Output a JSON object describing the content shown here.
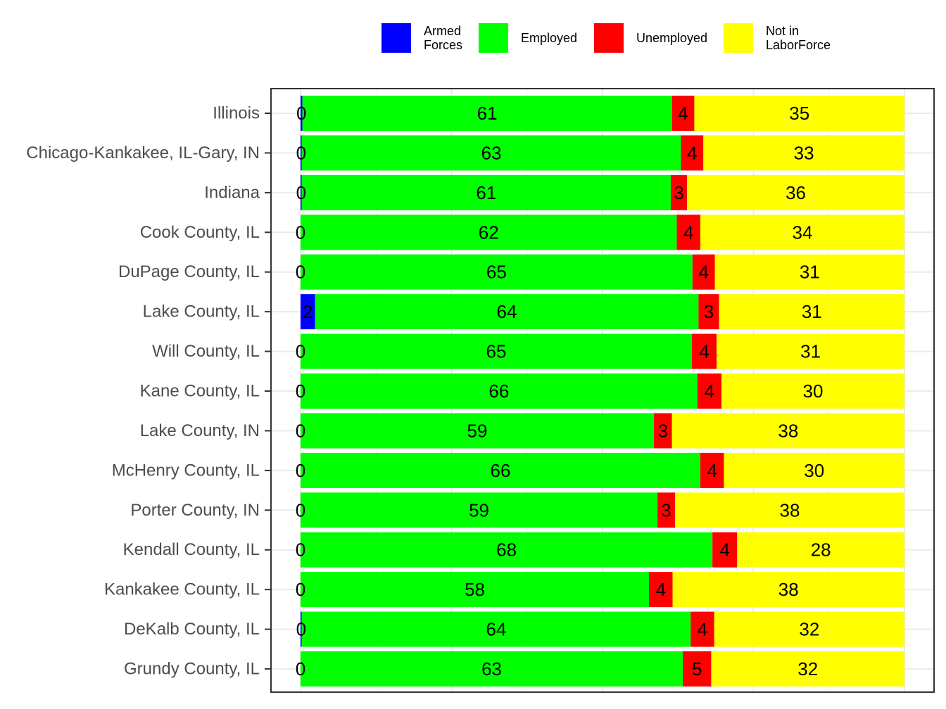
{
  "chart_data": {
    "type": "bar",
    "orientation": "horizontal",
    "stacked": true,
    "title": "",
    "xlabel": "",
    "ylabel": "",
    "xlim": [
      0,
      100
    ],
    "grid": true,
    "legend_position": "top",
    "categories": [
      "Illinois",
      "Chicago-Kankakee, IL-Gary, IN",
      "Indiana",
      "Cook County, IL",
      "DuPage County, IL",
      "Lake County, IL",
      "Will County, IL",
      "Kane County, IL",
      "Lake County, IN",
      "McHenry County, IL",
      "Porter County, IN",
      "Kendall County, IL",
      "Kankakee County, IL",
      "DeKalb County, IL",
      "Grundy County, IL"
    ],
    "series": [
      {
        "name": "Armed Forces",
        "legend_lines": [
          "Armed",
          "Forces"
        ],
        "color": "#0000ff",
        "values": [
          0.3,
          0.2,
          0.2,
          0,
          0,
          2.4,
          0,
          0,
          0,
          0,
          0,
          0,
          0,
          0.2,
          0
        ],
        "labels": [
          "0",
          "0",
          "0",
          "0",
          "0",
          "2",
          "0",
          "0",
          "0",
          "0",
          "0",
          "0",
          "0",
          "0",
          "0"
        ]
      },
      {
        "name": "Employed",
        "legend_lines": [
          "Employed"
        ],
        "color": "#00ff00",
        "values": [
          61.2,
          62.8,
          61.1,
          62.3,
          64.9,
          63.5,
          64.8,
          65.7,
          58.5,
          66.2,
          59.1,
          68.2,
          57.7,
          64.4,
          63.3
        ],
        "labels": [
          "61",
          "63",
          "61",
          "62",
          "65",
          "64",
          "65",
          "66",
          "59",
          "66",
          "59",
          "68",
          "58",
          "64",
          "63"
        ]
      },
      {
        "name": "Unemployed",
        "legend_lines": [
          "Unemployed"
        ],
        "color": "#ff0000",
        "values": [
          3.7,
          3.7,
          2.7,
          3.9,
          3.7,
          3.4,
          4.1,
          4.0,
          3.0,
          3.9,
          2.9,
          4.1,
          3.9,
          3.9,
          4.7
        ],
        "labels": [
          "4",
          "4",
          "3",
          "4",
          "4",
          "3",
          "4",
          "4",
          "3",
          "4",
          "3",
          "4",
          "4",
          "4",
          "5"
        ]
      },
      {
        "name": "Not in LaborForce",
        "legend_lines": [
          "Not in",
          "LaborForce"
        ],
        "color": "#ffff00",
        "values": [
          34.8,
          33.3,
          36.0,
          33.8,
          31.4,
          30.7,
          31.1,
          30.3,
          38.5,
          29.9,
          38.0,
          27.7,
          38.4,
          31.5,
          32.0
        ],
        "labels": [
          "35",
          "33",
          "36",
          "34",
          "31",
          "31",
          "31",
          "30",
          "38",
          "30",
          "38",
          "28",
          "38",
          "32",
          "32"
        ]
      }
    ]
  }
}
